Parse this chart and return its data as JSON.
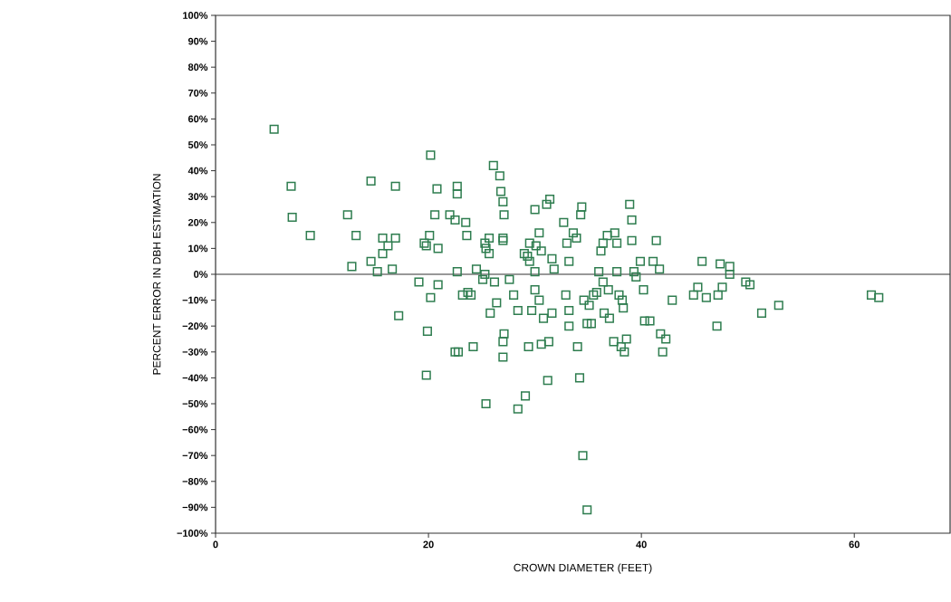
{
  "chart_data": {
    "type": "scatter",
    "xlabel": "CROWN DIAMETER (FEET)",
    "ylabel": "PERCENT ERROR IN DBH ESTIMATION",
    "xlim": [
      0,
      69
    ],
    "ylim": [
      -100,
      100
    ],
    "xticks": [
      0,
      20,
      40,
      60
    ],
    "yticks": [
      {
        "value": 100,
        "label": "100%"
      },
      {
        "value": 90,
        "label": "90%"
      },
      {
        "value": 80,
        "label": "80%"
      },
      {
        "value": 70,
        "label": "70%"
      },
      {
        "value": 60,
        "label": "60%"
      },
      {
        "value": 50,
        "label": "50%"
      },
      {
        "value": 40,
        "label": "40%"
      },
      {
        "value": 30,
        "label": "30%"
      },
      {
        "value": 20,
        "label": "20%"
      },
      {
        "value": 10,
        "label": "10%"
      },
      {
        "value": 0,
        "label": "0%"
      },
      {
        "value": -10,
        "label": "−10%"
      },
      {
        "value": -20,
        "label": "−20%"
      },
      {
        "value": -30,
        "label": "−30%"
      },
      {
        "value": -40,
        "label": "−40%"
      },
      {
        "value": -50,
        "label": "−50%"
      },
      {
        "value": -60,
        "label": "−60%"
      },
      {
        "value": -70,
        "label": "−70%"
      },
      {
        "value": -80,
        "label": "−80%"
      },
      {
        "value": -90,
        "label": "−90%"
      },
      {
        "value": -100,
        "label": "−100%"
      }
    ],
    "marker": "square",
    "ref_lines": [
      {
        "axis": "y",
        "value": 0,
        "color": "#333333"
      }
    ],
    "series": [
      {
        "color": "#2e7d4f",
        "x": [
          5.5,
          7.1,
          7.2,
          8.9,
          12.4,
          12.8,
          13.2,
          14.6,
          14.6,
          15.2,
          15.7,
          15.7,
          16.2,
          16.6,
          16.9,
          16.9,
          17.2,
          19.1,
          19.6,
          19.8,
          19.9,
          19.8,
          20.2,
          20.2,
          20.1,
          20.6,
          20.8,
          20.9,
          20.9,
          22,
          22.5,
          22.7,
          22.7,
          22.5,
          22.8,
          22.7,
          23.2,
          23.5,
          23.6,
          23.7,
          24,
          24.2,
          24.5,
          25.1,
          25.3,
          25.3,
          25.4,
          25.7,
          25.7,
          25.8,
          25.4,
          26.1,
          26.7,
          26.8,
          27,
          27.1,
          26.2,
          26.4,
          27,
          27,
          27.1,
          27,
          27,
          27.6,
          28,
          28.4,
          28.4,
          29,
          29.3,
          29.5,
          29.5,
          29.1,
          29.4,
          29.7,
          30,
          30,
          30,
          30.1,
          30.4,
          30.6,
          30.4,
          30.6,
          30.8,
          31.1,
          31.4,
          31.3,
          31.2,
          31.6,
          31.6,
          31.8,
          32.7,
          33,
          33.2,
          32.9,
          33.2,
          33.2,
          33.6,
          33.9,
          34.3,
          34.4,
          34,
          34.2,
          34.6,
          34.9,
          34.5,
          34.9,
          35.1,
          35.3,
          35.5,
          35.8,
          36,
          36.2,
          36.4,
          36.8,
          36.4,
          36.9,
          36.5,
          37,
          37.4,
          37.5,
          37.7,
          37.7,
          37.9,
          38.2,
          38.3,
          38.1,
          38.4,
          38.6,
          38.9,
          39.1,
          39.1,
          39.3,
          39.5,
          39.9,
          40.2,
          40.3,
          40.8,
          41.1,
          41.4,
          41.7,
          41.8,
          42,
          42.3,
          42.9,
          44.9,
          45.3,
          45.7,
          46.1,
          47.1,
          47.2,
          47.4,
          47.6,
          48.3,
          48.3,
          49.8,
          50.2,
          51.3,
          52.9,
          61.6,
          62.3
        ],
        "values": [
          56,
          34,
          22,
          15,
          23,
          3,
          15,
          36,
          5,
          1,
          14,
          8,
          11,
          2,
          14,
          34,
          -16,
          -3,
          12,
          11,
          -22,
          -39,
          46,
          -9,
          15,
          23,
          33,
          10,
          -4,
          23,
          21,
          34,
          31,
          -30,
          -30,
          1,
          -8,
          20,
          15,
          -7,
          -8,
          -28,
          2,
          -2,
          0,
          12,
          10,
          8,
          14,
          -15,
          -50,
          42,
          38,
          32,
          28,
          23,
          -3,
          -11,
          14,
          13,
          -23,
          -26,
          -32,
          -2,
          -8,
          -14,
          -52,
          8,
          7,
          12,
          5,
          -47,
          -28,
          -14,
          1,
          -6,
          25,
          11,
          16,
          9,
          -10,
          -27,
          -17,
          27,
          29,
          -26,
          -41,
          6,
          -15,
          2,
          20,
          12,
          5,
          -8,
          -14,
          -20,
          16,
          14,
          23,
          26,
          -28,
          -40,
          -10,
          -19,
          -70,
          -91,
          -12,
          -19,
          -8,
          -7,
          1,
          9,
          12,
          15,
          -3,
          -6,
          -15,
          -17,
          -26,
          16,
          12,
          1,
          -8,
          -10,
          -13,
          -28,
          -30,
          -25,
          27,
          21,
          13,
          1,
          -1,
          5,
          -6,
          -18,
          -18,
          5,
          13,
          2,
          -23,
          -30,
          -25,
          -10,
          -8,
          -5,
          5,
          -9,
          -20,
          -8,
          4,
          -5,
          3,
          0,
          -3,
          -4,
          -15,
          -12,
          -8,
          -9
        ]
      }
    ]
  }
}
